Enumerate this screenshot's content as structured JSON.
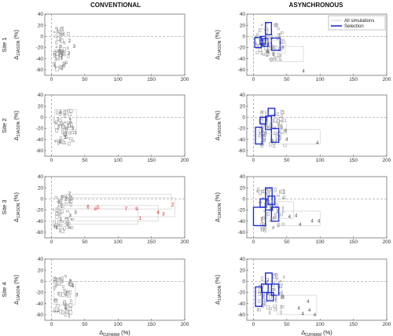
{
  "figure": {
    "column_titles": [
      "CONVENTIONAL",
      "ASYNCHRONOUS"
    ],
    "row_labels": [
      "Site 1",
      "Site 2",
      "Site 3",
      "Site 4"
    ],
    "ylabel_main": "Δ",
    "ylabel_sub": "JJASON",
    "ylabel_unit": " (%)",
    "xlabel_main": "Δ",
    "xlabel_sub": "DJFMAM",
    "xlabel_unit": " (%)",
    "legend": {
      "all": "All simulations",
      "selection": "Selection"
    },
    "colors": {
      "grey": "#8c8c8c",
      "light_grey": "#c8c8c8",
      "blue": "#1f2fd0",
      "red": "#e0141e",
      "dashed": "#888888"
    }
  },
  "chart_data": [
    {
      "type": "scatter",
      "method": "CONVENTIONAL",
      "site": "Site 1",
      "xlim": [
        -10,
        200
      ],
      "ylim": [
        -70,
        40
      ],
      "xticks": [
        0,
        50,
        100,
        150,
        200
      ],
      "yticks": [
        -60,
        -40,
        -20,
        0,
        20,
        40
      ],
      "cluster": {
        "x": [
          2,
          25
        ],
        "y": [
          -58,
          18
        ]
      },
      "labels": [
        {
          "x": 27,
          "y": -8,
          "t": "2",
          "c": "grey"
        },
        {
          "x": 34,
          "y": -18,
          "t": "3",
          "c": "grey"
        },
        {
          "x": 26,
          "y": -30,
          "t": "3",
          "c": "grey"
        },
        {
          "x": 15,
          "y": -38,
          "t": "1",
          "c": "grey"
        },
        {
          "x": 5,
          "y": -52,
          "t": "1",
          "c": "grey"
        },
        {
          "x": 12,
          "y": -26,
          "t": "6",
          "c": "grey"
        }
      ],
      "boxes": []
    },
    {
      "type": "scatter",
      "method": "ASYNCHRONOUS",
      "site": "Site 1",
      "xlim": [
        -10,
        200
      ],
      "ylim": [
        -70,
        40
      ],
      "xticks": [
        0,
        50,
        100,
        150,
        200
      ],
      "yticks": [
        -60,
        -40,
        -20,
        0,
        20,
        40
      ],
      "cluster": {
        "x": [
          3,
          42
        ],
        "y": [
          -40,
          25
        ]
      },
      "labels": [
        {
          "x": 44,
          "y": -20,
          "t": "9",
          "c": "grey"
        },
        {
          "x": 75,
          "y": -62,
          "t": "4",
          "c": "grey"
        },
        {
          "x": 22,
          "y": -28,
          "t": "6",
          "c": "grey"
        },
        {
          "x": 30,
          "y": -32,
          "t": "8",
          "c": "grey"
        }
      ],
      "boxes": [
        {
          "x": [
            2,
            12
          ],
          "y": [
            -20,
            -2
          ],
          "c": "blue"
        },
        {
          "x": [
            18,
            27
          ],
          "y": [
            3,
            25
          ],
          "c": "blue"
        },
        {
          "x": [
            27,
            40
          ],
          "y": [
            -25,
            -3
          ],
          "c": "blue"
        },
        {
          "x": [
            14,
            22
          ],
          "y": [
            -18,
            -4
          ],
          "c": "blue"
        },
        {
          "x": [
            10,
            18
          ],
          "y": [
            -14,
            0
          ],
          "c": "blue"
        },
        {
          "x": [
            20,
            48
          ],
          "y": [
            -30,
            -8
          ],
          "c": "grey"
        },
        {
          "x": [
            30,
            75
          ],
          "y": [
            -45,
            -18
          ],
          "c": "grey"
        },
        {
          "x": [
            8,
            22
          ],
          "y": [
            -10,
            14
          ],
          "c": "grey"
        }
      ]
    },
    {
      "type": "scatter",
      "method": "CONVENTIONAL",
      "site": "Site 2",
      "xlim": [
        -10,
        200
      ],
      "ylim": [
        -70,
        40
      ],
      "xticks": [
        0,
        50,
        100,
        150,
        200
      ],
      "yticks": [
        -60,
        -40,
        -20,
        0,
        20,
        40
      ],
      "cluster": {
        "x": [
          2,
          30
        ],
        "y": [
          -45,
          15
        ]
      },
      "labels": [
        {
          "x": 28,
          "y": -6,
          "t": "2",
          "c": "grey"
        },
        {
          "x": 32,
          "y": -20,
          "t": "3",
          "c": "grey"
        },
        {
          "x": 36,
          "y": -28,
          "t": "3",
          "c": "grey"
        },
        {
          "x": 20,
          "y": -36,
          "t": "3",
          "c": "grey"
        },
        {
          "x": 13,
          "y": -44,
          "t": "1",
          "c": "grey"
        }
      ],
      "boxes": [
        {
          "x": [
            5,
            38
          ],
          "y": [
            -22,
            14
          ],
          "c": "grey"
        }
      ]
    },
    {
      "type": "scatter",
      "method": "ASYNCHRONOUS",
      "site": "Site 2",
      "xlim": [
        -10,
        200
      ],
      "ylim": [
        -70,
        40
      ],
      "xticks": [
        0,
        50,
        100,
        150,
        200
      ],
      "yticks": [
        -60,
        -40,
        -20,
        0,
        20,
        40
      ],
      "cluster": {
        "x": [
          5,
          45
        ],
        "y": [
          -48,
          15
        ]
      },
      "labels": [
        {
          "x": 42,
          "y": -18,
          "t": "9",
          "c": "grey"
        },
        {
          "x": 48,
          "y": -24,
          "t": "8",
          "c": "grey"
        },
        {
          "x": 50,
          "y": -40,
          "t": "4",
          "c": "grey"
        },
        {
          "x": 96,
          "y": -46,
          "t": "4",
          "c": "grey"
        }
      ],
      "boxes": [
        {
          "x": [
            3,
            13
          ],
          "y": [
            -48,
            -18
          ],
          "c": "blue"
        },
        {
          "x": [
            18,
            27
          ],
          "y": [
            -22,
            2
          ],
          "c": "blue"
        },
        {
          "x": [
            22,
            32
          ],
          "y": [
            3,
            16
          ],
          "c": "blue"
        },
        {
          "x": [
            27,
            38
          ],
          "y": [
            -45,
            -20
          ],
          "c": "blue"
        },
        {
          "x": [
            10,
            20
          ],
          "y": [
            -12,
            0
          ],
          "c": "blue"
        },
        {
          "x": [
            35,
            100
          ],
          "y": [
            -48,
            -22
          ],
          "c": "grey"
        },
        {
          "x": [
            20,
            50
          ],
          "y": [
            -30,
            -8
          ],
          "c": "grey"
        }
      ]
    },
    {
      "type": "scatter",
      "method": "CONVENTIONAL",
      "site": "Site 3",
      "xlim": [
        -10,
        200
      ],
      "ylim": [
        -70,
        40
      ],
      "xticks": [
        0,
        50,
        100,
        150,
        200
      ],
      "yticks": [
        -60,
        -40,
        -20,
        0,
        20,
        40
      ],
      "cluster": {
        "x": [
          2,
          30
        ],
        "y": [
          -55,
          8
        ]
      },
      "labels": [
        {
          "x": 27,
          "y": 10,
          "t": "2",
          "c": "grey"
        },
        {
          "x": 22,
          "y": 0,
          "t": "2",
          "c": "grey"
        },
        {
          "x": 36,
          "y": -24,
          "t": "3",
          "c": "grey"
        },
        {
          "x": 28,
          "y": -30,
          "t": "3",
          "c": "grey"
        },
        {
          "x": 14,
          "y": -36,
          "t": "1",
          "c": "grey"
        },
        {
          "x": 8,
          "y": -52,
          "t": "1",
          "c": "grey"
        },
        {
          "x": 55,
          "y": -14,
          "t": "6",
          "c": "red"
        },
        {
          "x": 66,
          "y": -18,
          "t": "8",
          "c": "red"
        },
        {
          "x": 70,
          "y": -15,
          "t": "5",
          "c": "red"
        },
        {
          "x": 112,
          "y": -18,
          "t": "7",
          "c": "red"
        },
        {
          "x": 128,
          "y": -18,
          "t": "9",
          "c": "red"
        },
        {
          "x": 160,
          "y": -24,
          "t": "4",
          "c": "red"
        },
        {
          "x": 168,
          "y": -27,
          "t": "3",
          "c": "red"
        },
        {
          "x": 133,
          "y": -35,
          "t": "1",
          "c": "red"
        },
        {
          "x": 182,
          "y": -10,
          "t": "2",
          "c": "red"
        }
      ],
      "boxes": [
        {
          "x": [
            10,
            185
          ],
          "y": [
            -32,
            2
          ],
          "c": "grey"
        },
        {
          "x": [
            12,
            160
          ],
          "y": [
            -40,
            -12
          ],
          "c": "grey"
        },
        {
          "x": [
            6,
            130
          ],
          "y": [
            -45,
            -18
          ],
          "c": "grey"
        },
        {
          "x": [
            20,
            180
          ],
          "y": [
            -18,
            8
          ],
          "c": "grey"
        }
      ]
    },
    {
      "type": "scatter",
      "method": "ASYNCHRONOUS",
      "site": "Site 3",
      "xlim": [
        -10,
        200
      ],
      "ylim": [
        -70,
        40
      ],
      "xticks": [
        0,
        50,
        100,
        150,
        200
      ],
      "yticks": [
        -60,
        -40,
        -20,
        0,
        20,
        40
      ],
      "cluster": {
        "x": [
          5,
          45
        ],
        "y": [
          -55,
          20
        ]
      },
      "labels": [
        {
          "x": 12,
          "y": -36,
          "t": "1",
          "c": "red"
        },
        {
          "x": 36,
          "y": -22,
          "t": "3",
          "c": "grey"
        },
        {
          "x": 54,
          "y": -32,
          "t": "4",
          "c": "grey"
        },
        {
          "x": 64,
          "y": -30,
          "t": "4",
          "c": "grey"
        },
        {
          "x": 70,
          "y": -46,
          "t": "4",
          "c": "grey"
        },
        {
          "x": 88,
          "y": -40,
          "t": "4",
          "c": "grey"
        },
        {
          "x": 98,
          "y": -40,
          "t": "4",
          "c": "grey"
        }
      ],
      "boxes": [
        {
          "x": [
            0,
            18
          ],
          "y": [
            -48,
            -15
          ],
          "c": "blue"
        },
        {
          "x": [
            18,
            28
          ],
          "y": [
            -20,
            20
          ],
          "c": "blue"
        },
        {
          "x": [
            22,
            32
          ],
          "y": [
            -10,
            5
          ],
          "c": "blue"
        },
        {
          "x": [
            27,
            38
          ],
          "y": [
            -40,
            -15
          ],
          "c": "blue"
        },
        {
          "x": [
            10,
            20
          ],
          "y": [
            -15,
            0
          ],
          "c": "blue"
        },
        {
          "x": [
            35,
            100
          ],
          "y": [
            -48,
            -22
          ],
          "c": "grey"
        },
        {
          "x": [
            20,
            60
          ],
          "y": [
            -35,
            -5
          ],
          "c": "grey"
        }
      ]
    },
    {
      "type": "scatter",
      "method": "CONVENTIONAL",
      "site": "Site 4",
      "xlim": [
        -10,
        200
      ],
      "ylim": [
        -70,
        40
      ],
      "xticks": [
        0,
        50,
        100,
        150,
        200
      ],
      "yticks": [
        -60,
        -40,
        -20,
        0,
        20,
        40
      ],
      "cluster": {
        "x": [
          2,
          28
        ],
        "y": [
          -58,
          12
        ]
      },
      "labels": [
        {
          "x": 28,
          "y": 0,
          "t": "2",
          "c": "grey"
        },
        {
          "x": 32,
          "y": -8,
          "t": "3",
          "c": "grey"
        },
        {
          "x": 38,
          "y": -24,
          "t": "3",
          "c": "grey"
        },
        {
          "x": 10,
          "y": -52,
          "t": "1",
          "c": "grey"
        }
      ],
      "boxes": [
        {
          "x": [
            4,
            36
          ],
          "y": [
            -42,
            0
          ],
          "c": "grey"
        }
      ]
    },
    {
      "type": "scatter",
      "method": "ASYNCHRONOUS",
      "site": "Site 4",
      "xlim": [
        -10,
        200
      ],
      "ylim": [
        -70,
        40
      ],
      "xticks": [
        0,
        50,
        100,
        150,
        200
      ],
      "yticks": [
        -60,
        -40,
        -20,
        0,
        20,
        40
      ],
      "cluster": {
        "x": [
          5,
          45
        ],
        "y": [
          -55,
          15
        ]
      },
      "labels": [
        {
          "x": 44,
          "y": -28,
          "t": "8",
          "c": "grey"
        },
        {
          "x": 68,
          "y": -48,
          "t": "4",
          "c": "grey"
        },
        {
          "x": 82,
          "y": -36,
          "t": "4",
          "c": "grey"
        },
        {
          "x": 84,
          "y": -52,
          "t": "4",
          "c": "grey"
        },
        {
          "x": 92,
          "y": -60,
          "t": "4",
          "c": "grey"
        },
        {
          "x": 74,
          "y": -58,
          "t": "4",
          "c": "grey"
        }
      ],
      "boxes": [
        {
          "x": [
            3,
            13
          ],
          "y": [
            -45,
            -10
          ],
          "c": "blue"
        },
        {
          "x": [
            18,
            28
          ],
          "y": [
            -5,
            15
          ],
          "c": "blue"
        },
        {
          "x": [
            27,
            38
          ],
          "y": [
            -25,
            -5
          ],
          "c": "blue"
        },
        {
          "x": [
            12,
            22
          ],
          "y": [
            -20,
            -5
          ],
          "c": "blue"
        },
        {
          "x": [
            20,
            30
          ],
          "y": [
            -35,
            -20
          ],
          "c": "blue"
        },
        {
          "x": [
            35,
            95
          ],
          "y": [
            -60,
            -25
          ],
          "c": "grey"
        }
      ]
    }
  ]
}
